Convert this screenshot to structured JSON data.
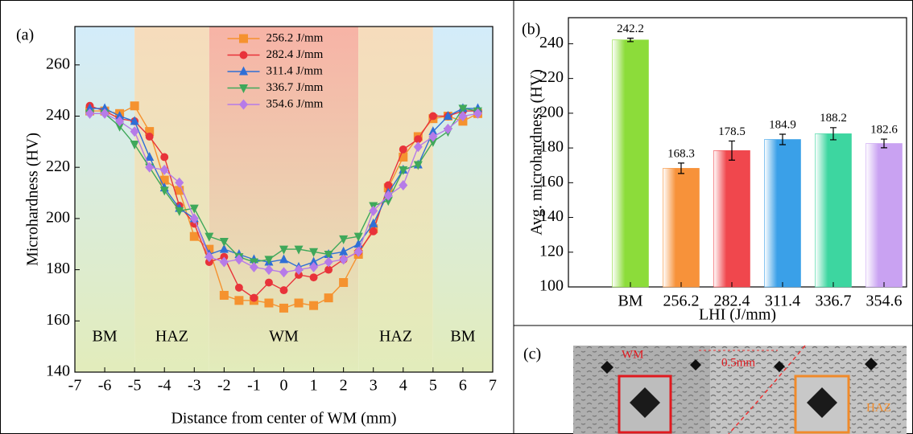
{
  "chart_data": [
    {
      "type": "line",
      "panel_label": "(a)",
      "x_label": "Distance from center of WM (mm)",
      "y_label": "Microhardness (HV)",
      "xlim": [
        -7,
        7
      ],
      "xticks": [
        -7,
        -6,
        -5,
        -4,
        -3,
        -2,
        -1,
        0,
        1,
        2,
        3,
        4,
        5,
        6,
        7
      ],
      "ylim": [
        140,
        275
      ],
      "yticks": [
        140,
        160,
        180,
        200,
        220,
        240,
        260
      ],
      "legend": "upper center",
      "regions": [
        {
          "label": "BM",
          "range": [
            -7,
            -5
          ],
          "color": "#d3ecfa"
        },
        {
          "label": "HAZ",
          "range": [
            -5,
            -2.5
          ],
          "color": "#f6dcbc"
        },
        {
          "label": "WM",
          "range": [
            -2.5,
            2.5
          ],
          "color": "#f7b3a6"
        },
        {
          "label": "HAZ",
          "range": [
            2.5,
            5
          ],
          "color": "#f6dcbc"
        },
        {
          "label": "BM",
          "range": [
            5,
            7
          ],
          "color": "#d3ecfa"
        }
      ],
      "x": [
        -6.5,
        -6,
        -5.5,
        -5,
        -4.5,
        -4,
        -3.5,
        -3,
        -2.5,
        -2,
        -1.5,
        -1,
        -0.5,
        0,
        0.5,
        1,
        1.5,
        2,
        2.5,
        3,
        3.5,
        4,
        4.5,
        5,
        5.5,
        6,
        6.5
      ],
      "series": [
        {
          "name": "256.2 J/mm",
          "color": "#f5922f",
          "marker": "square",
          "values": [
            242,
            242,
            241,
            244,
            234,
            215,
            211,
            193,
            188,
            170,
            168,
            168,
            167,
            165,
            167,
            166,
            169,
            175,
            186,
            196,
            212,
            224,
            232,
            239,
            240,
            238,
            241
          ]
        },
        {
          "name": "282.4 J/mm",
          "color": "#e8333a",
          "marker": "circle",
          "values": [
            244,
            242,
            239,
            238,
            232,
            224,
            205,
            198,
            183,
            185,
            173,
            169,
            175,
            172,
            178,
            177,
            180,
            184,
            187,
            195,
            213,
            227,
            231,
            240,
            240,
            242,
            242
          ]
        },
        {
          "name": "311.4 J/mm",
          "color": "#2f6fd6",
          "marker": "triangle-up",
          "values": [
            243,
            243,
            240,
            238,
            224,
            212,
            204,
            200,
            186,
            188,
            186,
            184,
            183,
            184,
            181,
            183,
            186,
            187,
            190,
            198,
            210,
            219,
            221,
            234,
            240,
            243,
            243
          ]
        },
        {
          "name": "336.7 J/mm",
          "color": "#3fa85a",
          "marker": "triangle-down",
          "values": [
            241,
            241,
            236,
            229,
            220,
            211,
            203,
            204,
            193,
            191,
            185,
            183,
            184,
            188,
            188,
            187,
            186,
            192,
            193,
            205,
            207,
            219,
            221,
            230,
            234,
            243,
            242
          ]
        },
        {
          "name": "354.6 J/mm",
          "color": "#b67be8",
          "marker": "diamond",
          "values": [
            241,
            241,
            238,
            234,
            220,
            219,
            214,
            200,
            185,
            183,
            184,
            181,
            180,
            179,
            180,
            181,
            183,
            184,
            187,
            203,
            209,
            213,
            228,
            232,
            235,
            240,
            241
          ]
        }
      ]
    },
    {
      "type": "bar",
      "panel_label": "(b)",
      "x_label": "LHI (J/mm)",
      "y_label": "Avg. microhardness (HV)",
      "ylim": [
        100,
        255
      ],
      "yticks": [
        100,
        120,
        140,
        160,
        180,
        200,
        220,
        240
      ],
      "categories": [
        "BM",
        "256.2",
        "282.4",
        "311.4",
        "336.7",
        "354.6"
      ],
      "values": [
        242.2,
        168.3,
        178.5,
        184.9,
        188.2,
        182.6
      ],
      "errors": [
        1,
        3,
        5.5,
        3,
        3.5,
        2.5
      ],
      "colors": [
        "#8cdc3a",
        "#f7923a",
        "#f0474d",
        "#3aa0e8",
        "#3dd6a0",
        "#c9a2f2"
      ]
    }
  ],
  "micrograph": {
    "panel_label": "(c)",
    "annotations": [
      "WM",
      "0.5mm",
      "HAZ"
    ]
  }
}
